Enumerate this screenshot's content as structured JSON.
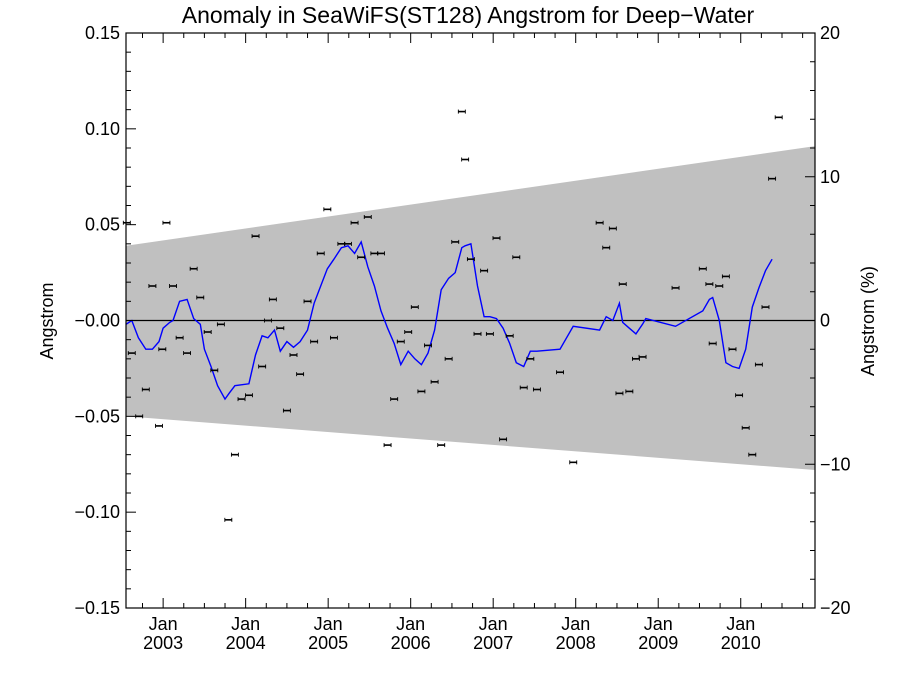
{
  "chart_data": {
    "type": "scatter",
    "title": "Anomaly in SeaWiFS(ST128) Angstrom for Deep−Water",
    "ylabel": "Angstrom",
    "y2label": "Angstrom (%)",
    "xlabel": "",
    "xlim": [
      2002.55,
      2010.9
    ],
    "ylim": [
      -0.15,
      0.15
    ],
    "y2lim": [
      -20,
      20
    ],
    "x_ticks": [
      2003,
      2004,
      2005,
      2006,
      2007,
      2008,
      2009,
      2010
    ],
    "x_tick_month": [
      "Jan",
      "Jan",
      "Jan",
      "Jan",
      "Jan",
      "Jan",
      "Jan",
      "Jan"
    ],
    "x_tick_year": [
      "2003",
      "2004",
      "2005",
      "2006",
      "2007",
      "2008",
      "2009",
      "2010"
    ],
    "y_ticks": [
      -0.15,
      -0.1,
      -0.05,
      0.0,
      0.05,
      0.1,
      0.15
    ],
    "y_tick_labels": [
      "−0.15",
      "−0.10",
      "−0.05",
      "−0.00",
      "0.05",
      "0.10",
      "0.15"
    ],
    "y2_ticks": [
      -20,
      -10,
      0,
      10,
      20
    ],
    "y2_tick_labels": [
      "−20",
      "−10",
      "0",
      "10",
      "20"
    ],
    "zero_line": 0,
    "band": {
      "upper": [
        [
          2002.55,
          0.039
        ],
        [
          2010.9,
          0.091
        ]
      ],
      "lower": [
        [
          2002.55,
          -0.05
        ],
        [
          2010.9,
          -0.078
        ]
      ],
      "color": "#c0c0c0"
    },
    "colors": {
      "points": "#000000",
      "smooth_line": "#0000ff",
      "zero_line": "#000000",
      "band": "#c0c0c0"
    },
    "grid": false,
    "series": [
      {
        "type": "scatter",
        "points": [
          [
            2002.56,
            0.051
          ],
          [
            2002.62,
            -0.017
          ],
          [
            2002.71,
            -0.05
          ],
          [
            2002.79,
            -0.036
          ],
          [
            2002.87,
            0.018
          ],
          [
            2002.95,
            -0.055
          ],
          [
            2002.99,
            -0.015
          ],
          [
            2003.04,
            0.051
          ],
          [
            2003.12,
            0.018
          ],
          [
            2003.2,
            -0.009
          ],
          [
            2003.29,
            -0.017
          ],
          [
            2003.37,
            0.027
          ],
          [
            2003.45,
            0.012
          ],
          [
            2003.54,
            -0.006
          ],
          [
            2003.62,
            -0.026
          ],
          [
            2003.7,
            -0.002
          ],
          [
            2003.79,
            -0.104
          ],
          [
            2003.87,
            -0.07
          ],
          [
            2003.95,
            -0.041
          ],
          [
            2004.04,
            -0.039
          ],
          [
            2004.12,
            0.044
          ],
          [
            2004.2,
            -0.024
          ],
          [
            2004.27,
            0.0
          ],
          [
            2004.33,
            0.011
          ],
          [
            2004.42,
            -0.004
          ],
          [
            2004.5,
            -0.047
          ],
          [
            2004.58,
            -0.018
          ],
          [
            2004.66,
            -0.028
          ],
          [
            2004.75,
            0.01
          ],
          [
            2004.83,
            -0.011
          ],
          [
            2004.91,
            0.035
          ],
          [
            2004.99,
            0.058
          ],
          [
            2005.07,
            -0.009
          ],
          [
            2005.16,
            0.04
          ],
          [
            2005.24,
            0.04
          ],
          [
            2005.32,
            0.051
          ],
          [
            2005.4,
            0.033
          ],
          [
            2005.48,
            0.054
          ],
          [
            2005.56,
            0.035
          ],
          [
            2005.64,
            0.035
          ],
          [
            2005.72,
            -0.065
          ],
          [
            2005.8,
            -0.041
          ],
          [
            2005.88,
            -0.011
          ],
          [
            2005.97,
            -0.006
          ],
          [
            2006.05,
            0.007
          ],
          [
            2006.13,
            -0.037
          ],
          [
            2006.21,
            -0.013
          ],
          [
            2006.29,
            -0.032
          ],
          [
            2006.37,
            -0.065
          ],
          [
            2006.46,
            -0.02
          ],
          [
            2006.54,
            0.041
          ],
          [
            2006.62,
            0.109
          ],
          [
            2006.66,
            0.084
          ],
          [
            2006.73,
            0.032
          ],
          [
            2006.81,
            -0.007
          ],
          [
            2006.89,
            0.026
          ],
          [
            2006.96,
            -0.007
          ],
          [
            2007.04,
            0.043
          ],
          [
            2007.12,
            -0.062
          ],
          [
            2007.2,
            -0.008
          ],
          [
            2007.28,
            0.033
          ],
          [
            2007.37,
            -0.035
          ],
          [
            2007.45,
            -0.02
          ],
          [
            2007.53,
            -0.036
          ],
          [
            2007.81,
            -0.027
          ],
          [
            2007.97,
            -0.074
          ],
          [
            2008.29,
            0.051
          ],
          [
            2008.37,
            0.038
          ],
          [
            2008.45,
            0.048
          ],
          [
            2008.53,
            -0.038
          ],
          [
            2008.57,
            0.019
          ],
          [
            2008.65,
            -0.037
          ],
          [
            2008.73,
            -0.02
          ],
          [
            2008.81,
            -0.019
          ],
          [
            2009.21,
            0.017
          ],
          [
            2009.54,
            0.027
          ],
          [
            2009.62,
            0.019
          ],
          [
            2009.66,
            -0.012
          ],
          [
            2009.74,
            0.018
          ],
          [
            2009.82,
            0.023
          ],
          [
            2009.9,
            -0.015
          ],
          [
            2009.98,
            -0.039
          ],
          [
            2010.06,
            -0.056
          ],
          [
            2010.14,
            -0.07
          ],
          [
            2010.22,
            -0.023
          ],
          [
            2010.3,
            0.007
          ],
          [
            2010.38,
            0.074
          ],
          [
            2010.46,
            0.106
          ]
        ]
      },
      {
        "type": "line",
        "points": [
          [
            2002.55,
            -0.002
          ],
          [
            2002.62,
            0.0
          ],
          [
            2002.7,
            -0.009
          ],
          [
            2002.79,
            -0.015
          ],
          [
            2002.87,
            -0.015
          ],
          [
            2002.95,
            -0.011
          ],
          [
            2003.0,
            -0.004
          ],
          [
            2003.08,
            -0.001
          ],
          [
            2003.12,
            0.0
          ],
          [
            2003.2,
            0.01
          ],
          [
            2003.29,
            0.011
          ],
          [
            2003.37,
            0.001
          ],
          [
            2003.45,
            -0.002
          ],
          [
            2003.5,
            -0.015
          ],
          [
            2003.58,
            -0.024
          ],
          [
            2003.66,
            -0.034
          ],
          [
            2003.75,
            -0.041
          ],
          [
            2003.8,
            -0.038
          ],
          [
            2003.87,
            -0.034
          ],
          [
            2004.04,
            -0.033
          ],
          [
            2004.12,
            -0.018
          ],
          [
            2004.2,
            -0.008
          ],
          [
            2004.27,
            -0.009
          ],
          [
            2004.35,
            -0.005
          ],
          [
            2004.42,
            -0.016
          ],
          [
            2004.5,
            -0.011
          ],
          [
            2004.58,
            -0.014
          ],
          [
            2004.66,
            -0.011
          ],
          [
            2004.75,
            -0.005
          ],
          [
            2004.83,
            0.009
          ],
          [
            2004.91,
            0.018
          ],
          [
            2004.99,
            0.027
          ],
          [
            2005.07,
            0.032
          ],
          [
            2005.16,
            0.038
          ],
          [
            2005.24,
            0.039
          ],
          [
            2005.32,
            0.035
          ],
          [
            2005.4,
            0.041
          ],
          [
            2005.48,
            0.028
          ],
          [
            2005.56,
            0.018
          ],
          [
            2005.64,
            0.005
          ],
          [
            2005.72,
            -0.004
          ],
          [
            2005.8,
            -0.012
          ],
          [
            2005.88,
            -0.023
          ],
          [
            2005.97,
            -0.016
          ],
          [
            2006.05,
            -0.02
          ],
          [
            2006.13,
            -0.023
          ],
          [
            2006.21,
            -0.017
          ],
          [
            2006.29,
            -0.005
          ],
          [
            2006.37,
            0.016
          ],
          [
            2006.46,
            0.022
          ],
          [
            2006.54,
            0.025
          ],
          [
            2006.62,
            0.038
          ],
          [
            2006.66,
            0.039
          ],
          [
            2006.73,
            0.04
          ],
          [
            2006.81,
            0.018
          ],
          [
            2006.89,
            0.002
          ],
          [
            2006.96,
            0.002
          ],
          [
            2007.04,
            0.001
          ],
          [
            2007.12,
            -0.004
          ],
          [
            2007.2,
            -0.012
          ],
          [
            2007.28,
            -0.022
          ],
          [
            2007.37,
            -0.024
          ],
          [
            2007.45,
            -0.016
          ],
          [
            2007.53,
            -0.016
          ],
          [
            2007.81,
            -0.015
          ],
          [
            2007.97,
            -0.003
          ],
          [
            2008.29,
            -0.005
          ],
          [
            2008.37,
            0.002
          ],
          [
            2008.45,
            0.0
          ],
          [
            2008.53,
            0.009
          ],
          [
            2008.57,
            -0.001
          ],
          [
            2008.65,
            -0.004
          ],
          [
            2008.73,
            -0.007
          ],
          [
            2008.81,
            -0.002
          ],
          [
            2008.85,
            0.001
          ],
          [
            2009.21,
            -0.003
          ],
          [
            2009.54,
            0.005
          ],
          [
            2009.62,
            0.011
          ],
          [
            2009.66,
            0.012
          ],
          [
            2009.74,
            0.0
          ],
          [
            2009.82,
            -0.022
          ],
          [
            2009.9,
            -0.024
          ],
          [
            2009.98,
            -0.025
          ],
          [
            2010.06,
            -0.015
          ],
          [
            2010.14,
            0.007
          ],
          [
            2010.22,
            0.017
          ],
          [
            2010.3,
            0.026
          ],
          [
            2010.38,
            0.032
          ]
        ]
      }
    ]
  }
}
